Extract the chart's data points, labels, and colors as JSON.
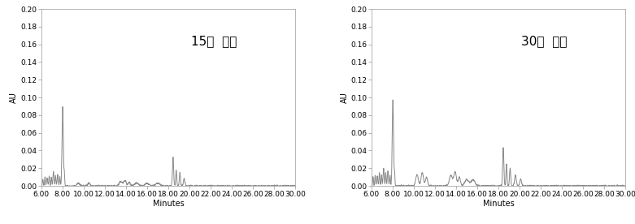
{
  "panel1_label": "15일  경과",
  "panel2_label": "30일  경과",
  "xlabel": "Minutes",
  "ylabel": "AU",
  "xlim": [
    6.0,
    30.0
  ],
  "ylim": [
    0.0,
    0.2
  ],
  "yticks": [
    0.0,
    0.02,
    0.04,
    0.06,
    0.08,
    0.1,
    0.12,
    0.14,
    0.16,
    0.18,
    0.2
  ],
  "xticks": [
    6.0,
    8.0,
    10.0,
    12.0,
    14.0,
    16.0,
    18.0,
    20.0,
    22.0,
    24.0,
    26.0,
    28.0,
    30.0
  ],
  "line_color": "#888888",
  "line_width": 0.7,
  "bg_color": "#ffffff",
  "label_fontsize": 11,
  "tick_fontsize": 6.5,
  "ylabel_fontsize": 7
}
